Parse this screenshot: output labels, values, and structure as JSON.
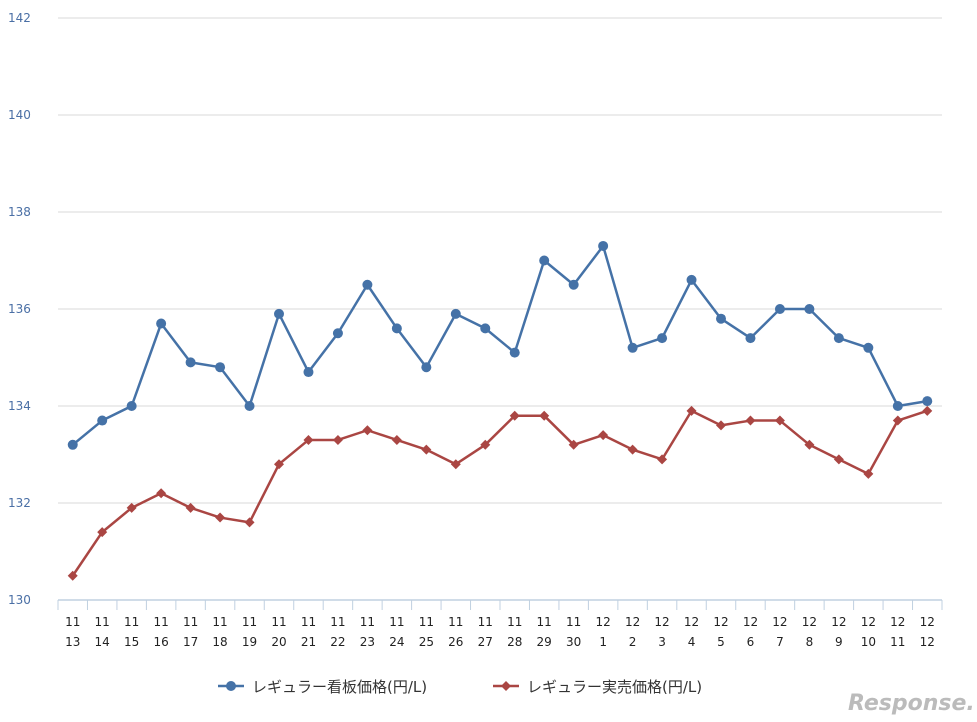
{
  "chart_data": {
    "type": "line",
    "categories": [
      "11\n13",
      "11\n14",
      "11\n15",
      "11\n16",
      "11\n17",
      "11\n18",
      "11\n19",
      "11\n20",
      "11\n21",
      "11\n22",
      "11\n23",
      "11\n24",
      "11\n25",
      "11\n26",
      "11\n27",
      "11\n28",
      "11\n29",
      "11\n30",
      "12\n1",
      "12\n2",
      "12\n3",
      "12\n4",
      "12\n5",
      "12\n6",
      "12\n7",
      "12\n8",
      "12\n9",
      "12\n10",
      "12\n11",
      "12\n12"
    ],
    "ylim": [
      130,
      142
    ],
    "yticks": [
      130,
      132,
      134,
      136,
      138,
      140,
      142
    ],
    "grid": true,
    "legend_position": "bottom",
    "series": [
      {
        "name": "レギュラー看板価格(円/L)",
        "color": "#4572a7",
        "marker": "circle",
        "values": [
          133.2,
          133.7,
          134.0,
          135.7,
          134.9,
          134.8,
          134.0,
          135.9,
          134.7,
          135.5,
          136.5,
          135.6,
          134.8,
          135.9,
          135.6,
          135.1,
          137.0,
          136.5,
          137.3,
          135.2,
          135.4,
          136.6,
          135.8,
          135.4,
          136.0,
          136.0,
          135.4,
          135.2,
          134.0,
          134.1
        ]
      },
      {
        "name": "レギュラー実売価格(円/L)",
        "color": "#aa4643",
        "marker": "diamond",
        "values": [
          130.5,
          131.4,
          131.9,
          132.2,
          131.9,
          131.7,
          131.6,
          132.8,
          133.3,
          133.3,
          133.5,
          133.3,
          133.1,
          132.8,
          133.2,
          133.8,
          133.8,
          133.2,
          133.4,
          133.1,
          132.9,
          133.9,
          133.6,
          133.7,
          133.7,
          133.2,
          132.9,
          132.6,
          133.7,
          133.9
        ]
      }
    ]
  },
  "watermark": "Response."
}
